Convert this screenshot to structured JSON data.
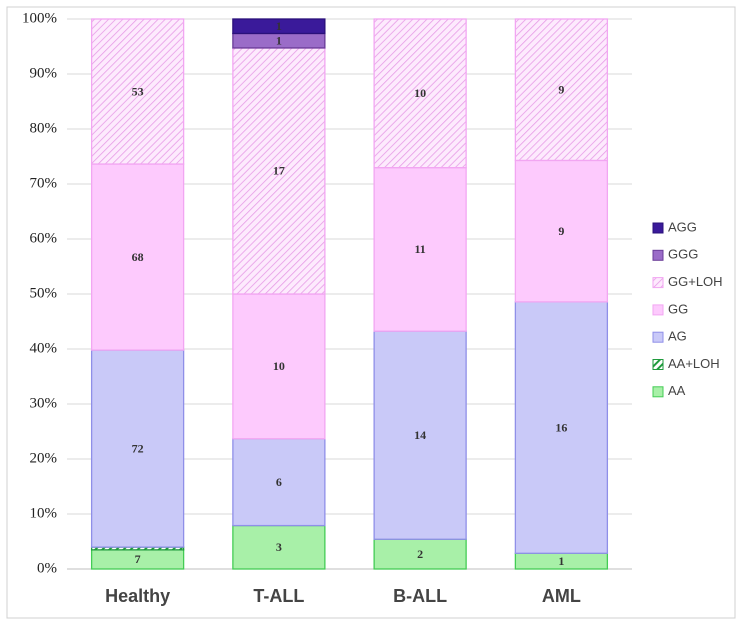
{
  "chart_data": {
    "type": "bar",
    "stacking": "percent",
    "categories": [
      "Healthy",
      "T-ALL",
      "B-ALL",
      "AML"
    ],
    "series": [
      {
        "name": "AA",
        "color": "#a8f0a8",
        "stroke": "#44cc55",
        "hatch": false,
        "values": [
          7,
          3,
          2,
          1
        ]
      },
      {
        "name": "AA+LOH",
        "color": "#1f9a3c",
        "stroke": "#1f9a3c",
        "hatch": true,
        "values": [
          1,
          null,
          null,
          null
        ]
      },
      {
        "name": "AG",
        "color": "#c9c9f8",
        "stroke": "#8f8fe8",
        "hatch": false,
        "values": [
          72,
          6,
          14,
          16
        ]
      },
      {
        "name": "GG",
        "color": "#fdcafd",
        "stroke": "#f2a6f2",
        "hatch": false,
        "values": [
          68,
          10,
          11,
          9
        ]
      },
      {
        "name": "GG+LOH",
        "color": "#e79be7",
        "stroke": "#f2a6f2",
        "hatch": true,
        "values": [
          53,
          17,
          10,
          9
        ]
      },
      {
        "name": "GGG",
        "color": "#9a6cc8",
        "stroke": "#6a3c98",
        "hatch": false,
        "values": [
          null,
          1,
          null,
          null
        ]
      },
      {
        "name": "AGG",
        "color": "#3a1a9a",
        "stroke": "#2a107a",
        "hatch": false,
        "values": [
          null,
          1,
          null,
          null
        ]
      }
    ],
    "ylim": [
      0,
      100
    ],
    "yticks": [
      {
        "value": 0,
        "label": "0%"
      },
      {
        "value": 10,
        "label": "10%"
      },
      {
        "value": 20,
        "label": "20%"
      },
      {
        "value": 30,
        "label": "30%"
      },
      {
        "value": 40,
        "label": "40%"
      },
      {
        "value": 50,
        "label": "50%"
      },
      {
        "value": 60,
        "label": "60%"
      },
      {
        "value": 70,
        "label": "70%"
      },
      {
        "value": 80,
        "label": "80%"
      },
      {
        "value": 90,
        "label": "90%"
      },
      {
        "value": 100,
        "label": "100%"
      }
    ],
    "grid": true,
    "legend": "right"
  }
}
